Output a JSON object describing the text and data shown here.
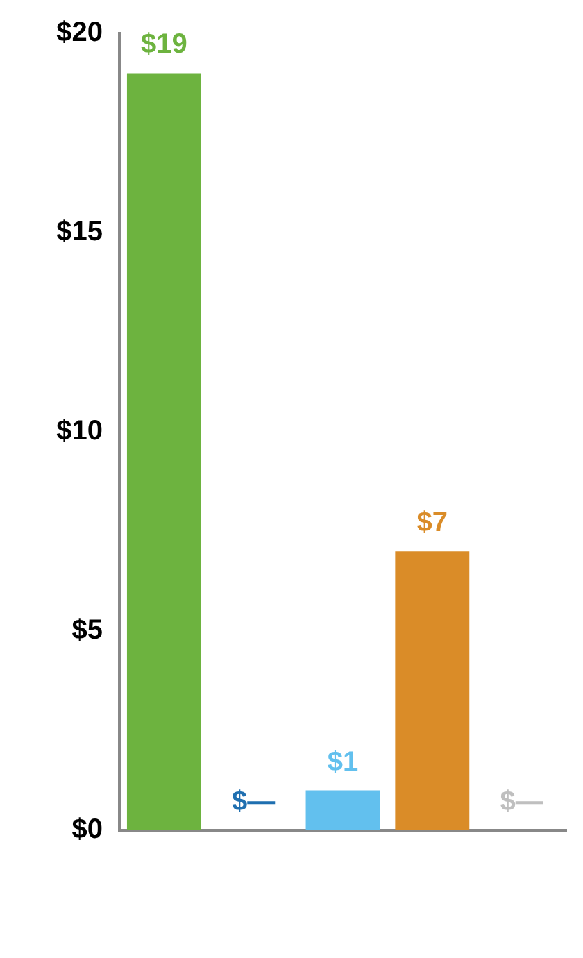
{
  "chart_data": {
    "type": "bar",
    "categories": [
      null,
      null,
      null,
      null,
      null
    ],
    "values": [
      19,
      0,
      1,
      7,
      0
    ],
    "colors": [
      "#6db33f",
      "#1f6fb0",
      "#62c0ee",
      "#da8c28",
      "#bfbfbf"
    ],
    "value_labels": [
      "$19",
      "$—",
      "$1",
      "$7",
      "$—"
    ],
    "ylim": [
      0,
      20
    ],
    "yticks": [
      {
        "value": 0,
        "label": "$0"
      },
      {
        "value": 5,
        "label": "$5"
      },
      {
        "value": 10,
        "label": "$10"
      },
      {
        "value": 15,
        "label": "$15"
      },
      {
        "value": 20,
        "label": "$20"
      }
    ],
    "grid": false,
    "legend": false
  }
}
